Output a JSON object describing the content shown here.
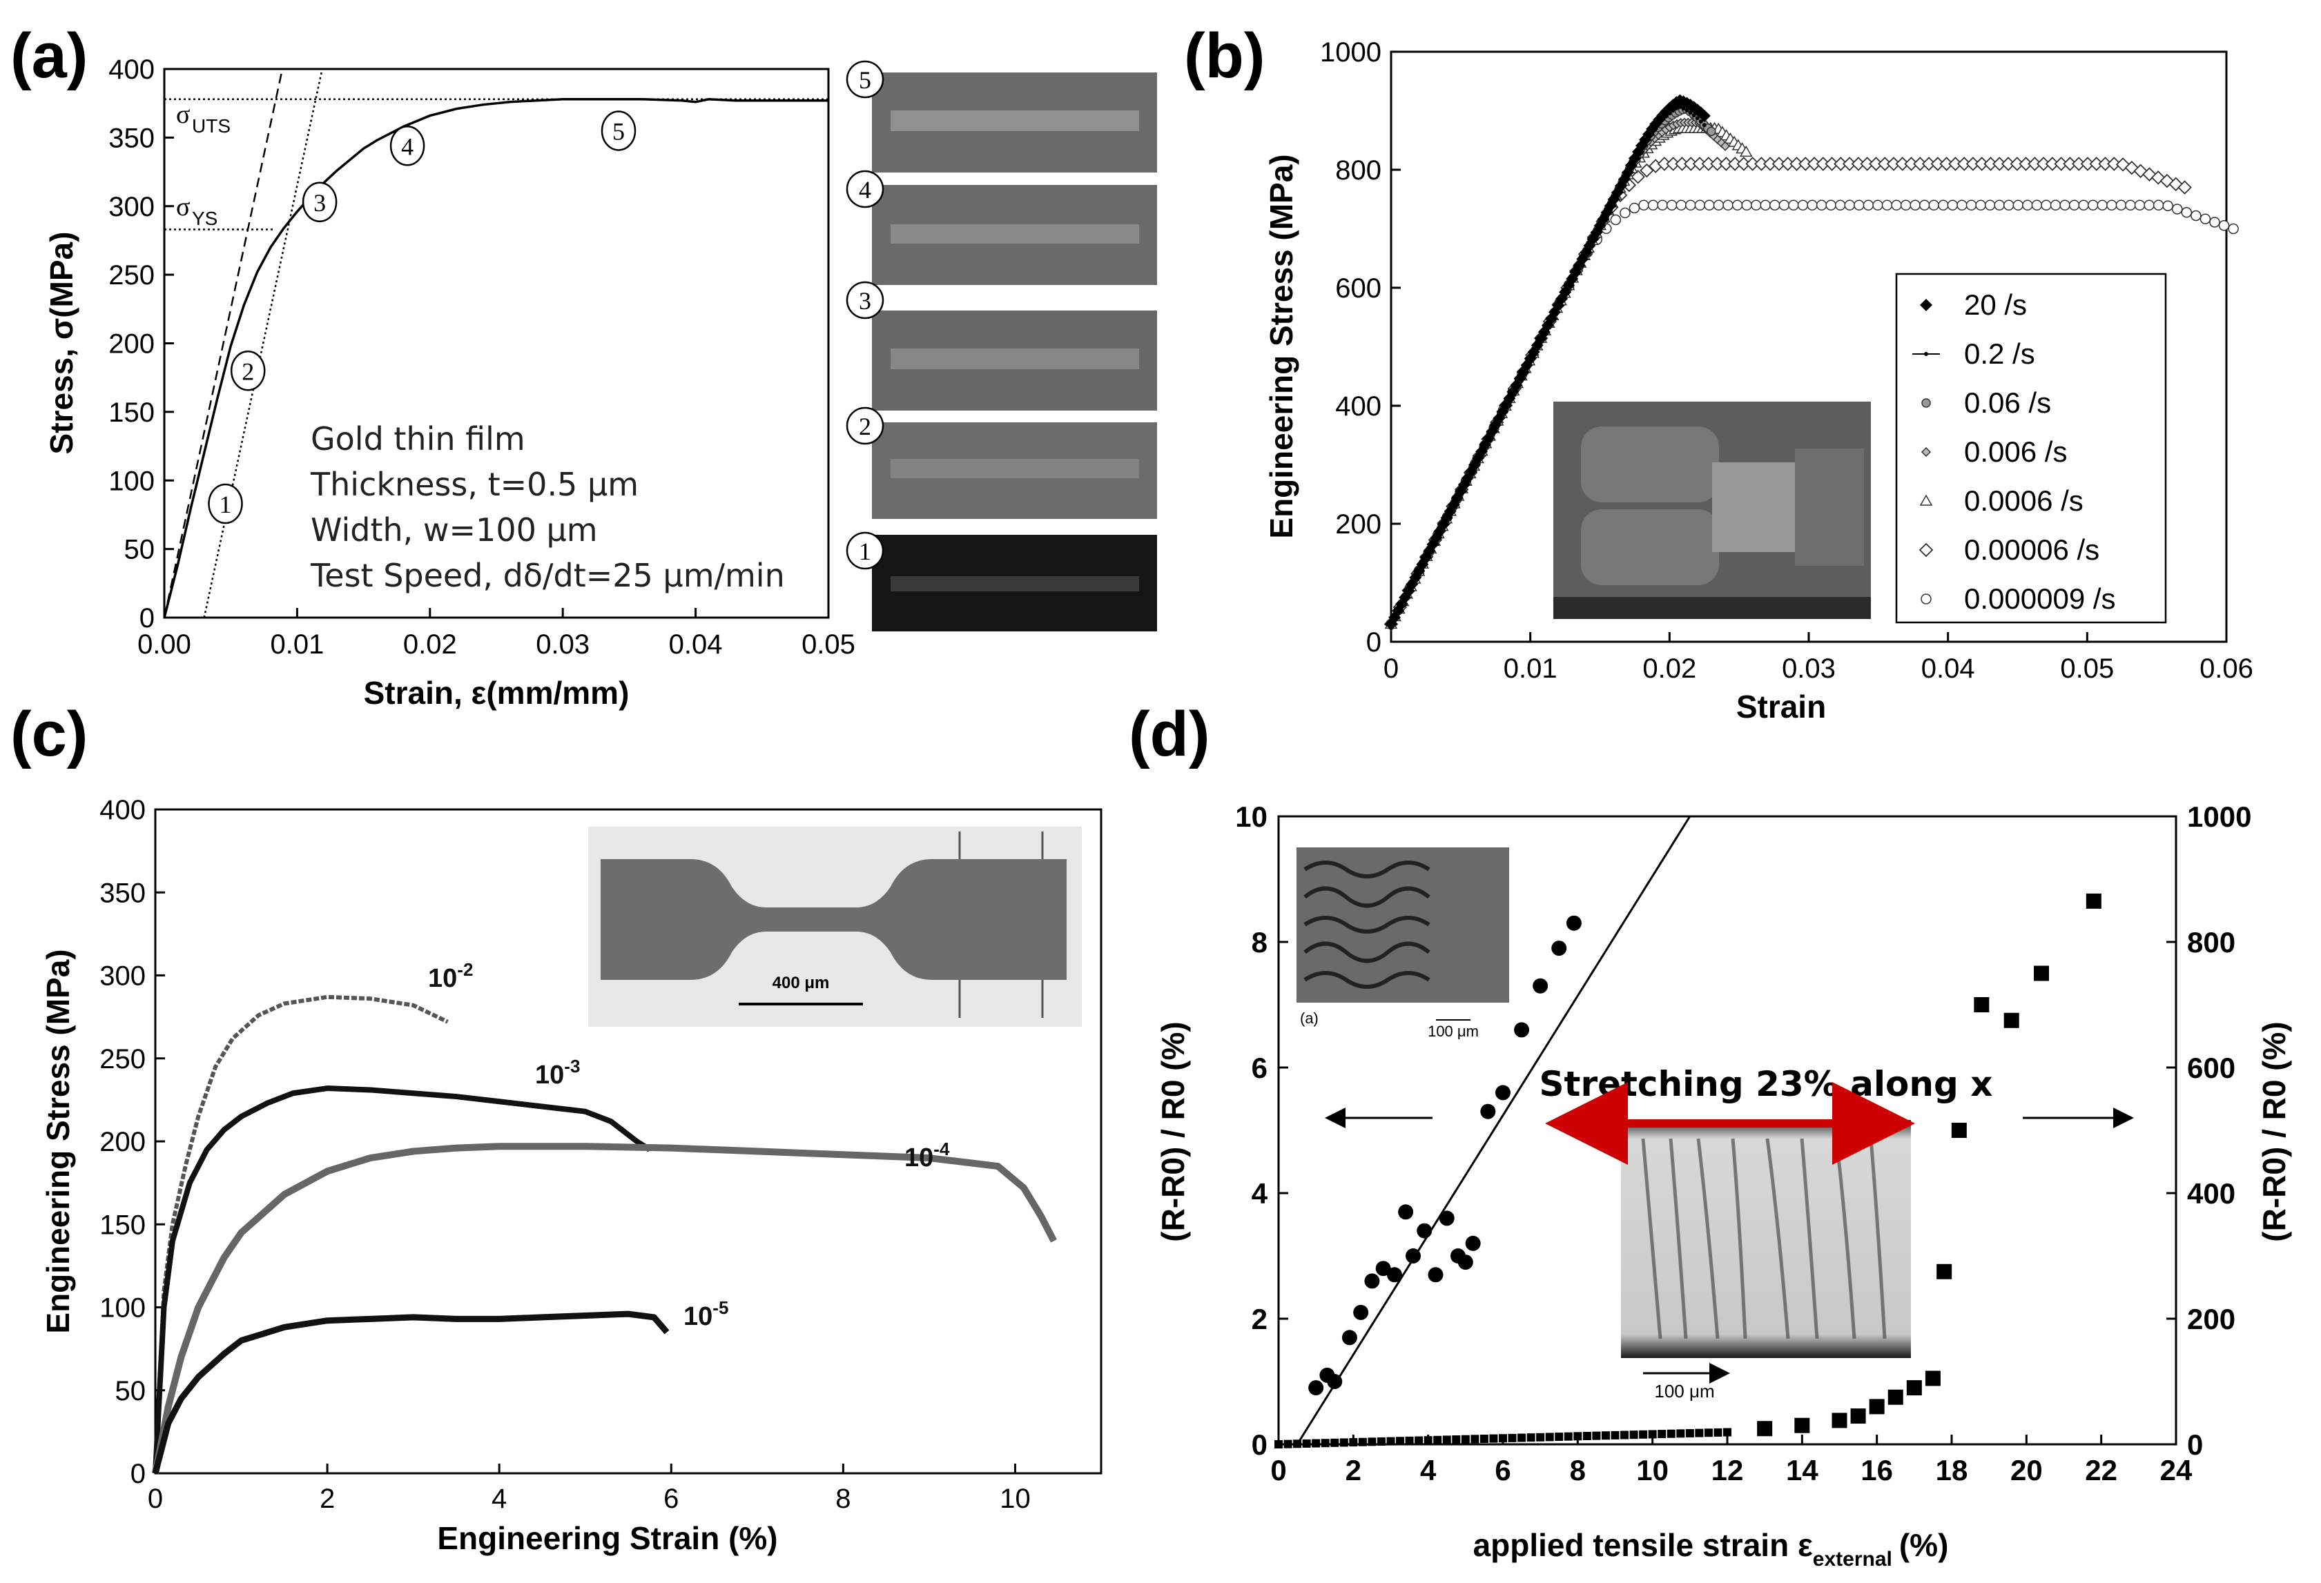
{
  "chart_data": [
    {
      "panel": "(a)",
      "type": "line",
      "xlabel": "Strain, ε(mm/mm)",
      "ylabel": "Stress, σ(MPa)",
      "xlim": [
        0,
        0.05
      ],
      "ylim": [
        0,
        400
      ],
      "xticks": [
        "0.00",
        "0.01",
        "0.02",
        "0.03",
        "0.04",
        "0.05"
      ],
      "yticks": [
        "0",
        "50",
        "100",
        "150",
        "200",
        "250",
        "300",
        "350",
        "400"
      ],
      "series": [
        {
          "name": "stress-strain",
          "x": [
            0.0,
            0.001,
            0.002,
            0.003,
            0.004,
            0.005,
            0.006,
            0.007,
            0.008,
            0.009,
            0.01,
            0.011,
            0.012,
            0.013,
            0.014,
            0.015,
            0.016,
            0.017,
            0.018,
            0.019,
            0.02,
            0.022,
            0.024,
            0.026,
            0.028,
            0.03,
            0.033,
            0.036,
            0.039,
            0.04,
            0.041,
            0.043,
            0.046,
            0.048,
            0.05
          ],
          "y": [
            0,
            38,
            80,
            120,
            160,
            198,
            228,
            252,
            270,
            284,
            296,
            307,
            317,
            326,
            334,
            342,
            348,
            353,
            358,
            362,
            366,
            371,
            374,
            376,
            377,
            378,
            378,
            378,
            377,
            376,
            378,
            377,
            377,
            377,
            377
          ]
        }
      ],
      "reference_lines": {
        "uts": 378,
        "ys": 283,
        "offset_line_1": {
          "x0": 0.0,
          "slope_mpa_per_strain": 45000
        },
        "offset_line_2": {
          "x0": 0.003,
          "slope_mpa_per_strain": 45000
        }
      },
      "labels": {
        "uts": "UTS",
        "ys": "YS"
      },
      "points": [
        {
          "label": "1",
          "x": 0.0046,
          "y": 83
        },
        {
          "label": "2",
          "x": 0.0063,
          "y": 180
        },
        {
          "label": "3",
          "x": 0.0117,
          "y": 303
        },
        {
          "label": "4",
          "x": 0.0183,
          "y": 344
        },
        {
          "label": "5",
          "x": 0.0342,
          "y": 355
        }
      ],
      "annotation_lines": [
        "Gold thin film",
        "Thickness, t=0.5 μm",
        "Width, w=100 μm",
        "Test Speed, dδ/dt=25 μm/min"
      ],
      "image_labels": [
        "5",
        "4",
        "3",
        "2",
        "1"
      ]
    },
    {
      "panel": "(b)",
      "type": "scatter",
      "xlabel": "Strain",
      "ylabel": "Engineering Stress (MPa)",
      "xlim": [
        0,
        0.06
      ],
      "ylim": [
        0,
        1000
      ],
      "xticks": [
        "0",
        "0.01",
        "0.02",
        "0.03",
        "0.04",
        "0.05",
        "0.06"
      ],
      "yticks": [
        "0",
        "200",
        "400",
        "600",
        "800",
        "1000"
      ],
      "series": [
        {
          "name": "20 /s",
          "marker": "diamond-filled",
          "end_strain": 0.0225,
          "uts": 930
        },
        {
          "name": "0.2 /s",
          "marker": "dot-line",
          "end_strain": 0.0225,
          "uts": 915
        },
        {
          "name": "0.06 /s",
          "marker": "circle-gray",
          "end_strain": 0.023,
          "uts": 905
        },
        {
          "name": "0.006 /s",
          "marker": "diamond-small",
          "end_strain": 0.024,
          "uts": 880
        },
        {
          "name": "0.0006 /s",
          "marker": "triangle",
          "end_strain": 0.0255,
          "uts": 870
        },
        {
          "name": "0.00006 /s",
          "marker": "diamond-open",
          "end_strain": 0.057,
          "uts": 810
        },
        {
          "name": "0.000009 /s",
          "marker": "circle-open",
          "end_strain": 0.0605,
          "uts": 740
        }
      ]
    },
    {
      "panel": "(c)",
      "type": "line",
      "xlabel": "Engineering Strain (%)",
      "ylabel": "Engineering Stress (MPa)",
      "xlim": [
        0,
        11
      ],
      "ylim": [
        0,
        400
      ],
      "xticks": [
        "0",
        "2",
        "4",
        "6",
        "8",
        "10"
      ],
      "yticks": [
        "0",
        "50",
        "100",
        "150",
        "200",
        "250",
        "300",
        "350",
        "400"
      ],
      "series": [
        {
          "name": "10-2",
          "x": [
            0,
            0.1,
            0.2,
            0.35,
            0.5,
            0.7,
            0.9,
            1.2,
            1.5,
            2.0,
            2.5,
            3.0,
            3.4
          ],
          "y": [
            0,
            110,
            150,
            185,
            215,
            245,
            262,
            276,
            283,
            287,
            286,
            282,
            272
          ]
        },
        {
          "name": "10-3",
          "x": [
            0,
            0.1,
            0.2,
            0.4,
            0.6,
            0.8,
            1.0,
            1.3,
            1.6,
            2.0,
            2.5,
            3.0,
            3.5,
            4.0,
            4.5,
            5.0,
            5.3,
            5.6,
            5.75
          ],
          "y": [
            0,
            100,
            140,
            175,
            195,
            207,
            215,
            223,
            229,
            232,
            231,
            229,
            227,
            224,
            221,
            218,
            212,
            200,
            195
          ]
        },
        {
          "name": "10-4",
          "x": [
            0,
            0.15,
            0.3,
            0.5,
            0.8,
            1.0,
            1.5,
            2.0,
            2.5,
            3.0,
            3.5,
            4.0,
            5.0,
            6.0,
            7.0,
            8.0,
            9.0,
            9.8,
            10.1,
            10.3,
            10.45
          ],
          "y": [
            0,
            40,
            70,
            100,
            130,
            145,
            168,
            182,
            190,
            194,
            196,
            197,
            197,
            196,
            194,
            192,
            190,
            185,
            172,
            155,
            140
          ]
        },
        {
          "name": "10-5",
          "x": [
            0,
            0.15,
            0.3,
            0.5,
            0.8,
            1.0,
            1.5,
            2.0,
            2.5,
            3.0,
            3.5,
            4.0,
            4.5,
            5.0,
            5.5,
            5.8,
            5.95
          ],
          "y": [
            0,
            30,
            45,
            58,
            72,
            80,
            88,
            92,
            93,
            94,
            93,
            93,
            94,
            95,
            96,
            94,
            85
          ]
        }
      ],
      "inset_scale": "400 μm"
    },
    {
      "panel": "(d)",
      "type": "scatter",
      "xlabel_main": "applied tensile strain ε",
      "xlabel_sub": "external",
      "xlabel_suffix": "(%)",
      "ylabel_left": "(R-R0) / R0 (%)",
      "ylabel_right": "(R-R0) / R0 (%)",
      "xlim": [
        0,
        24
      ],
      "ylim_left": [
        0,
        10
      ],
      "ylim_right": [
        0,
        1000
      ],
      "xticks": [
        "0",
        "2",
        "4",
        "6",
        "8",
        "10",
        "12",
        "14",
        "16",
        "18",
        "20",
        "22",
        "24"
      ],
      "yticks_left": [
        "0",
        "2",
        "4",
        "6",
        "8",
        "10"
      ],
      "yticks_right": [
        "0",
        "200",
        "400",
        "600",
        "800",
        "1000"
      ],
      "series": [
        {
          "name": "circles-left-axis",
          "axis": "left",
          "x": [
            1.0,
            1.3,
            1.5,
            1.9,
            2.2,
            2.5,
            2.8,
            3.1,
            3.4,
            3.6,
            3.9,
            4.2,
            4.5,
            4.8,
            5.0,
            5.2,
            5.6,
            6.0,
            6.5,
            7.0,
            7.5,
            7.9
          ],
          "y": [
            0.9,
            1.1,
            1.0,
            1.7,
            2.1,
            2.6,
            2.8,
            2.7,
            3.7,
            3.0,
            3.4,
            2.7,
            3.6,
            3.0,
            2.9,
            3.2,
            5.3,
            5.6,
            6.6,
            7.3,
            7.9,
            8.3
          ]
        },
        {
          "name": "squares-right-axis",
          "axis": "right",
          "x": [
            0,
            2,
            4,
            6,
            8,
            10,
            12,
            13,
            14,
            15,
            15.5,
            16,
            16.5,
            17,
            17.5,
            17.8,
            18.2,
            18.8,
            19.6,
            20.4,
            21.8
          ],
          "y": [
            0,
            5,
            8,
            10,
            13,
            15,
            20,
            25,
            30,
            38,
            45,
            60,
            75,
            90,
            105,
            275,
            500,
            700,
            675,
            750,
            865
          ]
        },
        {
          "name": "linear-fit",
          "axis": "left",
          "x": [
            0.5,
            11.0
          ],
          "y": [
            0,
            10
          ]
        }
      ],
      "inset_caption": "(a)",
      "inset_scale_small": "100 μm",
      "inset_scale": "100 μm",
      "stretch_label": "Stretching 23% along x"
    }
  ],
  "panel_labels": [
    "(a)",
    "(b)",
    "(c)",
    "(d)"
  ]
}
